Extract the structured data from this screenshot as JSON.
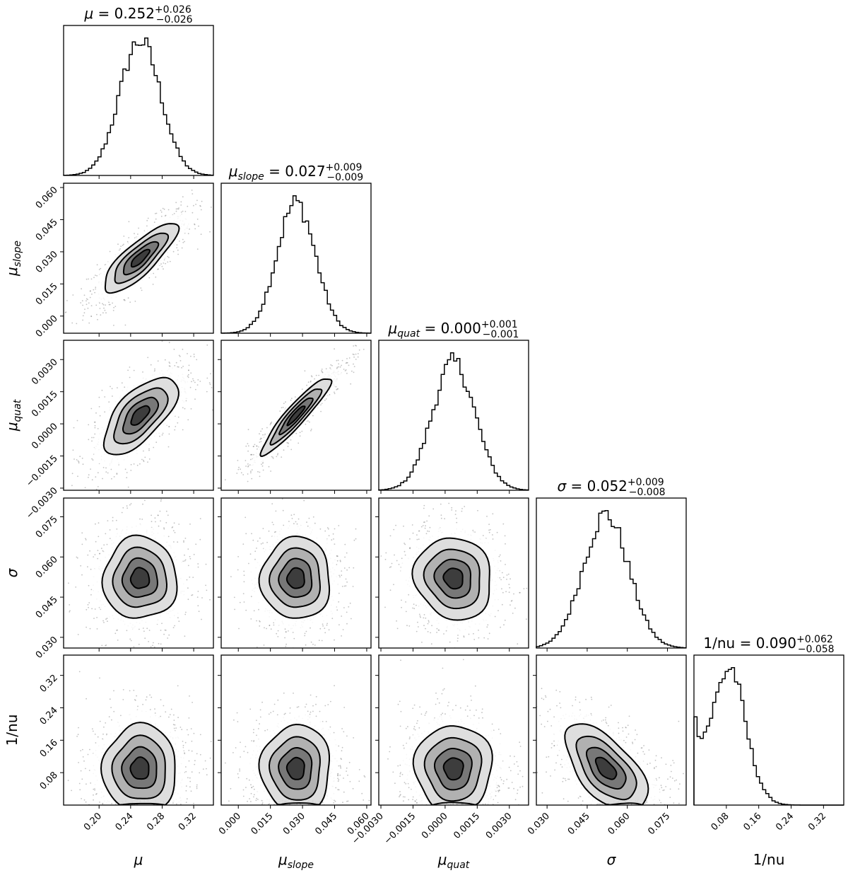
{
  "chart_data": {
    "type": "corner",
    "parameters": [
      {
        "key": "mu",
        "label_base": "μ",
        "label_sub": "",
        "title": {
          "prefix": "",
          "value": "0.252",
          "plus": "+0.026",
          "minus": "−0.026"
        },
        "range": [
          0.155,
          0.345
        ],
        "ticks": [
          0.2,
          0.24,
          0.28,
          0.32
        ],
        "tick_labels": [
          "0.20",
          "0.24",
          "0.28",
          "0.32"
        ],
        "median": 0.252,
        "sigma": 0.026
      },
      {
        "key": "mu_slope",
        "label_base": "μ",
        "label_sub": "slope",
        "title": {
          "prefix": "",
          "value": "0.027",
          "plus": "+0.009",
          "minus": "−0.009"
        },
        "range": [
          -0.008,
          0.062
        ],
        "ticks": [
          0.0,
          0.015,
          0.03,
          0.045,
          0.06
        ],
        "tick_labels": [
          "0.000",
          "0.015",
          "0.030",
          "0.045",
          "0.060"
        ],
        "median": 0.027,
        "sigma": 0.009
      },
      {
        "key": "mu_quat",
        "label_base": "μ",
        "label_sub": "quat",
        "title": {
          "prefix": "",
          "value": "0.000",
          "plus": "+0.001",
          "minus": "−0.001"
        },
        "range": [
          -0.0031,
          0.0039
        ],
        "ticks": [
          -0.003,
          -0.0015,
          0.0,
          0.0015,
          0.003
        ],
        "tick_labels": [
          "−0.0030",
          "−0.0015",
          "0.0000",
          "0.0015",
          "0.0030"
        ],
        "median": 0.0004,
        "sigma": 0.001
      },
      {
        "key": "sigma",
        "label_base": "σ",
        "label_sub": "",
        "title": {
          "prefix": "",
          "value": "0.052",
          "plus": "+0.009",
          "minus": "−0.008"
        },
        "range": [
          0.026,
          0.082
        ],
        "ticks": [
          0.03,
          0.045,
          0.06,
          0.075
        ],
        "tick_labels": [
          "0.030",
          "0.045",
          "0.060",
          "0.075"
        ],
        "median": 0.052,
        "sigma": 0.0085
      },
      {
        "key": "inv_nu",
        "label_base": "1/nu",
        "label_sub": "",
        "title": {
          "prefix": "1/nu = ",
          "value": "0.090",
          "plus": "+0.062",
          "minus": "−0.058"
        },
        "range": [
          0.0,
          0.37
        ],
        "ticks": [
          0.08,
          0.16,
          0.24,
          0.32
        ],
        "tick_labels": [
          "0.08",
          "0.16",
          "0.24",
          "0.32"
        ],
        "median": 0.09,
        "sigma": 0.06
      }
    ],
    "correlations": {
      "mu_slope|mu": 0.82,
      "mu_quat|mu": 0.65,
      "mu_quat|mu_slope": 0.93,
      "sigma|mu": 0.0,
      "sigma|mu_slope": 0.0,
      "sigma|mu_quat": -0.1,
      "inv_nu|mu": 0.0,
      "inv_nu|mu_slope": 0.0,
      "inv_nu|mu_quat": 0.0,
      "inv_nu|sigma": -0.6
    }
  }
}
